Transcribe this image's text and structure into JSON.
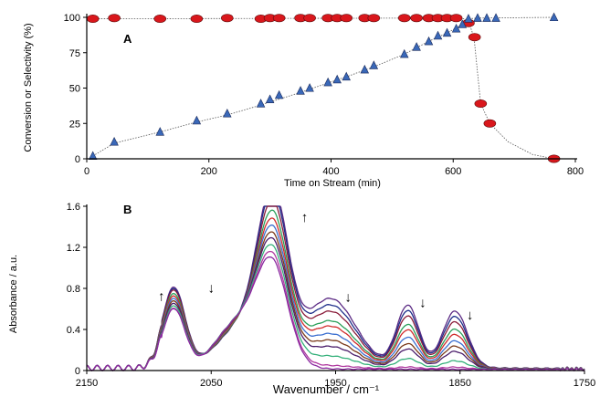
{
  "chart_data": [
    {
      "type": "scatter",
      "panel_label": "A",
      "xlabel": "Time on Stream (min)",
      "ylabel": "Conversion or Selectivity (%)",
      "xlim": [
        0,
        800
      ],
      "ylim": [
        0,
        100
      ],
      "xticks": [
        "0",
        "200",
        "400",
        "600",
        "800"
      ],
      "yticks": [
        "0",
        "25",
        "50",
        "75",
        "100"
      ],
      "grid": false,
      "legend": "none",
      "series": [
        {
          "marker": "circle",
          "color": "#d9171c",
          "points": [
            [
              10,
              99
            ],
            [
              45,
              99.5
            ],
            [
              120,
              99
            ],
            [
              180,
              99
            ],
            [
              230,
              99.5
            ],
            [
              285,
              99
            ],
            [
              300,
              99.5
            ],
            [
              315,
              99.5
            ],
            [
              350,
              99.5
            ],
            [
              365,
              99.5
            ],
            [
              395,
              99.5
            ],
            [
              410,
              99.5
            ],
            [
              425,
              99.5
            ],
            [
              455,
              99.5
            ],
            [
              470,
              99.5
            ],
            [
              520,
              99.5
            ],
            [
              540,
              99.5
            ],
            [
              560,
              99.5
            ],
            [
              575,
              99.5
            ],
            [
              590,
              99.5
            ],
            [
              605,
              99.5
            ],
            [
              625,
              96
            ],
            [
              635,
              86
            ],
            [
              645,
              39
            ],
            [
              660,
              25
            ],
            [
              765,
              0
            ]
          ],
          "trend": [
            [
              10,
              99
            ],
            [
              560,
              99.5
            ],
            [
              605,
              99.5
            ],
            [
              618,
              99
            ],
            [
              626,
              96
            ],
            [
              634,
              86
            ],
            [
              645,
              39
            ],
            [
              660,
              25
            ],
            [
              690,
              12
            ],
            [
              730,
              3
            ],
            [
              765,
              0
            ]
          ]
        },
        {
          "marker": "triangle",
          "color": "#3a68b8",
          "points": [
            [
              10,
              2
            ],
            [
              45,
              12
            ],
            [
              120,
              19
            ],
            [
              180,
              27
            ],
            [
              230,
              32
            ],
            [
              285,
              39
            ],
            [
              300,
              42
            ],
            [
              315,
              45
            ],
            [
              350,
              48
            ],
            [
              365,
              50
            ],
            [
              395,
              54
            ],
            [
              410,
              56
            ],
            [
              425,
              58
            ],
            [
              455,
              63
            ],
            [
              470,
              66
            ],
            [
              520,
              74
            ],
            [
              540,
              79
            ],
            [
              560,
              83
            ],
            [
              575,
              87
            ],
            [
              590,
              89
            ],
            [
              605,
              92
            ],
            [
              615,
              95
            ],
            [
              625,
              99
            ],
            [
              640,
              99.5
            ],
            [
              655,
              99.5
            ],
            [
              670,
              99.5
            ],
            [
              765,
              100
            ]
          ],
          "trend": [
            [
              10,
              2
            ],
            [
              45,
              11
            ],
            [
              120,
              19
            ],
            [
              180,
              26
            ],
            [
              230,
              31
            ],
            [
              285,
              38
            ],
            [
              350,
              47
            ],
            [
              425,
              58
            ],
            [
              470,
              65
            ],
            [
              520,
              74
            ],
            [
              560,
              83
            ],
            [
              590,
              89
            ],
            [
              615,
              95
            ],
            [
              625,
              99
            ],
            [
              640,
              99.5
            ],
            [
              765,
              100
            ]
          ]
        }
      ]
    },
    {
      "type": "line",
      "panel_label": "B",
      "xlabel": "Wavenumber / cm⁻¹",
      "ylabel": "Absorbance / a.u.",
      "xlim": [
        2150,
        1750
      ],
      "ylim": [
        0,
        1.6
      ],
      "xticks": [
        "2150",
        "2050",
        "1950",
        "1850",
        "1750"
      ],
      "yticks": [
        "0",
        "0.4",
        "0.8",
        "1.2",
        "1.6"
      ],
      "grid": false,
      "legend": "none",
      "annotations": [
        {
          "text": "↑",
          "x": 2090,
          "y": 0.68
        },
        {
          "text": "↓",
          "x": 2050,
          "y": 0.76
        },
        {
          "text": "↑",
          "x": 1975,
          "y": 1.45
        },
        {
          "text": "↓",
          "x": 1940,
          "y": 0.67
        },
        {
          "text": "↓",
          "x": 1880,
          "y": 0.62
        },
        {
          "text": "↓",
          "x": 1842,
          "y": 0.5
        }
      ],
      "peaks": [
        {
          "center": 2080,
          "width": 9
        },
        {
          "center": 2038,
          "width": 14
        },
        {
          "center": 2012,
          "width": 18
        },
        {
          "center": 2000,
          "width": 12
        },
        {
          "center": 1954,
          "width": 20
        },
        {
          "center": 1892,
          "width": 9
        },
        {
          "center": 1854,
          "width": 10
        }
      ],
      "baseline_amplitude": 0.05,
      "series": [
        {
          "color": "#5b2a84",
          "peak_heights": [
            0.75,
            0.15,
            0.44,
            1.35,
            0.66,
            0.6,
            0.55
          ]
        },
        {
          "color": "#1f2f8a",
          "peak_heights": [
            0.74,
            0.15,
            0.44,
            1.3,
            0.6,
            0.55,
            0.5
          ]
        },
        {
          "color": "#8a1c3a",
          "peak_heights": [
            0.73,
            0.16,
            0.44,
            1.22,
            0.54,
            0.5,
            0.45
          ]
        },
        {
          "color": "#2aa05a",
          "peak_heights": [
            0.7,
            0.17,
            0.44,
            1.13,
            0.45,
            0.42,
            0.38
          ]
        },
        {
          "color": "#d02a2a",
          "peak_heights": [
            0.68,
            0.18,
            0.45,
            1.05,
            0.4,
            0.37,
            0.33
          ]
        },
        {
          "color": "#3b6fd0",
          "peak_heights": [
            0.66,
            0.19,
            0.46,
            0.98,
            0.33,
            0.3,
            0.27
          ]
        },
        {
          "color": "#7a3a1a",
          "peak_heights": [
            0.64,
            0.2,
            0.46,
            0.92,
            0.27,
            0.24,
            0.22
          ]
        },
        {
          "color": "#4a1c6a",
          "peak_heights": [
            0.62,
            0.21,
            0.47,
            0.86,
            0.21,
            0.19,
            0.17
          ]
        },
        {
          "color": "#34b07a",
          "peak_heights": [
            0.6,
            0.22,
            0.47,
            0.8,
            0.12,
            0.1,
            0.08
          ]
        },
        {
          "color": "#b03aa0",
          "peak_heights": [
            0.58,
            0.22,
            0.47,
            0.74,
            0.03,
            0.02,
            0.02
          ]
        },
        {
          "color": "#8a2aa0",
          "peak_heights": [
            0.58,
            0.22,
            0.48,
            0.68,
            0,
            0,
            0
          ]
        }
      ]
    }
  ]
}
